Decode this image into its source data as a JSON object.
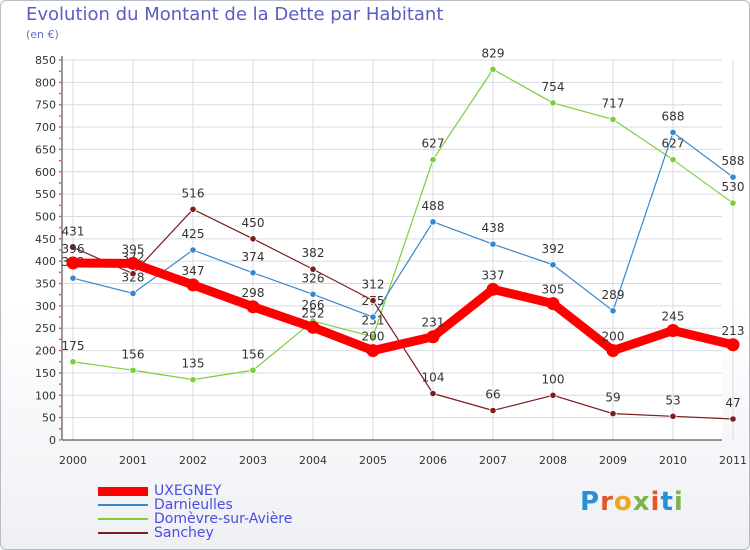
{
  "chart_data": {
    "type": "line",
    "title": "Evolution du Montant de la Dette par Habitant",
    "ylabel": "(en €)",
    "xlabel": "",
    "ylim": [
      0,
      850
    ],
    "yticks": [
      0,
      50,
      100,
      150,
      200,
      250,
      300,
      350,
      400,
      450,
      500,
      550,
      600,
      650,
      700,
      750,
      800,
      850
    ],
    "categories": [
      "2000",
      "2001",
      "2002",
      "2003",
      "2004",
      "2005",
      "2006",
      "2007",
      "2008",
      "2009",
      "2010",
      "2011"
    ],
    "grid": true,
    "legend_position": "bottom-left",
    "series": [
      {
        "name": "UXEGNEY",
        "color": "#ff0000",
        "values": [
          396,
          395,
          347,
          298,
          252,
          200,
          231,
          337,
          305,
          200,
          245,
          213
        ],
        "labels": [
          "396",
          "395",
          "347",
          "298",
          "252",
          "200",
          "231",
          "337",
          "305",
          "200",
          "245",
          "213"
        ]
      },
      {
        "name": "Darnieulles",
        "color": "#3a87c8",
        "values": [
          362,
          328,
          425,
          374,
          326,
          275,
          488,
          438,
          392,
          289,
          688,
          588
        ],
        "labels": [
          "362",
          "328",
          "425",
          "374",
          "326",
          "275",
          "488",
          "438",
          "392",
          "289",
          "688",
          "588"
        ]
      },
      {
        "name": "Domèvre-sur-Avière",
        "color": "#7dce3a",
        "values": [
          175,
          156,
          135,
          156,
          266,
          231,
          627,
          829,
          754,
          717,
          627,
          530
        ],
        "labels": [
          "175",
          "156",
          "135",
          "156",
          "266",
          "231",
          "627",
          "829",
          "754",
          "717",
          "627",
          "530"
        ]
      },
      {
        "name": "Sanchey",
        "color": "#7a1e1e",
        "values": [
          431,
          372,
          516,
          450,
          382,
          312,
          104,
          66,
          100,
          59,
          53,
          47
        ],
        "labels": [
          "431",
          "372",
          "516",
          "450",
          "382",
          "312",
          "104",
          "66",
          "100",
          "59",
          "53",
          "47"
        ]
      }
    ]
  },
  "header": {
    "title": "Evolution du Montant de la Dette par Habitant",
    "subtitle": "(en €)"
  },
  "legend": {
    "items": [
      {
        "label": "UXEGNEY",
        "color": "#ff0000"
      },
      {
        "label": "Darnieulles",
        "color": "#3a87c8"
      },
      {
        "label": "Domèvre-sur-Avière",
        "color": "#7dce3a"
      },
      {
        "label": "Sanchey",
        "color": "#7a1e1e"
      }
    ]
  },
  "brand": {
    "letters": [
      "P",
      "r",
      "o",
      "x",
      "i",
      "t",
      "i"
    ]
  }
}
